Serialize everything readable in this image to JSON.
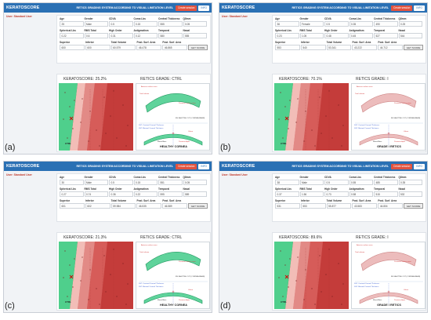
{
  "header": {
    "brand": "KERATOSCORE",
    "system_title": "RETICS GRADING SYSTEM ACCORDING TO VISUAL LIMITATION LEVEL",
    "new_button": "Create session",
    "info_button": "INFO"
  },
  "user_label": "User: Standard User",
  "get_score_button": "GET SCORE",
  "diagram_labels": {
    "anterior": "Anterior surface area",
    "posterior": "Posterior surface area",
    "total": "Total volume",
    "bsag": "BS SAGITTAL CUT (CORNEA MEAN)",
    "thin1": "SST: Centroid Corneal Thickness",
    "thin2": "SST: Minimal Corneal Thickness",
    "vol": "Volum",
    "apex": "Morrall Axis",
    "pmax": "Posterior Apex"
  },
  "field_labels": [
    "Age",
    "Gender",
    "CDVA",
    "Coma Lbs",
    "Central Thickness",
    "Q8mm",
    "Spherical Lbs",
    "RMS Total",
    "High Order",
    "Astigmatism",
    "Temporal",
    "Nasal",
    "Superior",
    "Inferior",
    "Total Volume",
    "Post. Surf. Area",
    "Post. Surf. Area"
  ],
  "panels": [
    {
      "caption": "(a)",
      "keratoscore": "KERATOSCORE: 25.2%",
      "grade": "RETICS GRADE: CTRL",
      "diagram_title": "HEALTHY CORNEA",
      "map_label": "CTRL",
      "values": [
        "25",
        "Male",
        "0.5",
        "0.15",
        "555",
        "0.05",
        "0.22",
        "0.6",
        "0.31",
        "0.12",
        "580",
        "555",
        "600",
        "600",
        "60.579",
        "46.478",
        "46.865"
      ],
      "cornea_fill": "#5fd39b",
      "cornea_stroke": "#239a62"
    },
    {
      "caption": "(b)",
      "keratoscore": "KERATOSCORE: 70.1%",
      "grade": "RETICS GRADE: I",
      "diagram_title": "GRADE I RETICS",
      "map_label": "CTRL",
      "values": [
        "36",
        "Female",
        "0.5",
        "0.35",
        "490",
        "0.25",
        "0.23",
        "1.05",
        "0.48",
        "0.45",
        "527",
        "544",
        "553",
        "540",
        "53.341",
        "43.222",
        "44.712"
      ],
      "cornea_fill": "#ecbcbc",
      "cornea_stroke": "#cd8585"
    },
    {
      "caption": "(c)",
      "keratoscore": "KERATOSCORE: 21.3%",
      "grade": "RETICS GRADE: CTRL",
      "diagram_title": "HEALTHY CORNEA",
      "map_label": "CTRL",
      "values": [
        "30",
        "Male",
        "0.5",
        "0.15",
        "551",
        "0.05",
        "0.27",
        "0.74",
        "0.36",
        "0.22",
        "595",
        "589",
        "601",
        "602",
        "59.984",
        "46.535",
        "46.589"
      ],
      "cornea_fill": "#5fd39b",
      "cornea_stroke": "#239a62"
    },
    {
      "caption": "(d)",
      "keratoscore": "KERATOSCORE: 89.6%",
      "grade": "RETICS GRADE: I",
      "diagram_title": "GRADE I RETICS",
      "map_label": "CTRL",
      "values": [
        "38",
        "Male",
        "0.5",
        "0.55",
        "485",
        "0.35",
        "0.37",
        "1.56",
        "0.73",
        "0.58",
        "515",
        "532",
        "531",
        "553",
        "55.877",
        "43.583",
        "44.804"
      ],
      "cornea_fill": "#ecbcbc",
      "cornea_stroke": "#cd8585"
    }
  ]
}
